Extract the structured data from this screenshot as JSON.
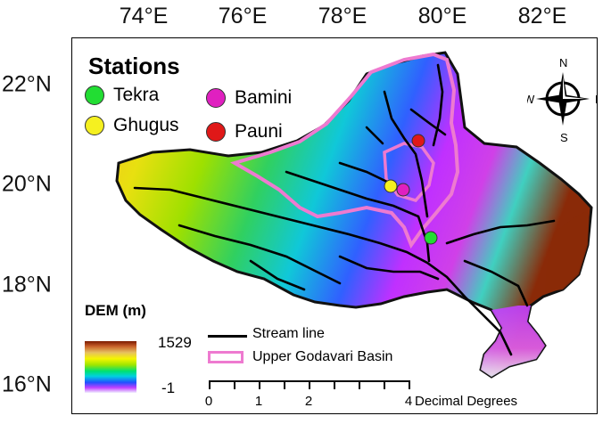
{
  "axes": {
    "top_ticks": [
      "74°E",
      "76°E",
      "78°E",
      "80°E",
      "82°E"
    ],
    "left_ticks": [
      "22°N",
      "20°N",
      "18°N",
      "16°N"
    ]
  },
  "legend": {
    "title": "Stations",
    "stations": [
      {
        "label": "Tekra",
        "color": "#22dd33"
      },
      {
        "label": "Ghugus",
        "color": "#f5f020"
      },
      {
        "label": "Bamini",
        "color": "#e020c0"
      },
      {
        "label": "Pauni",
        "color": "#e01818"
      }
    ]
  },
  "compass": {
    "n": "N",
    "s": "S",
    "e": "E",
    "w": "W"
  },
  "dem": {
    "title": "DEM (m)",
    "max": "1529",
    "min": "-1"
  },
  "layers": {
    "stream": "Stream line",
    "basin": "Upper Godavari Basin"
  },
  "scale": {
    "ticks": [
      "0",
      "1",
      "2",
      "4"
    ],
    "unit": "Decimal Degrees"
  },
  "colors": {
    "basin_outline": "#ee7ad0",
    "stream": "#000000"
  }
}
